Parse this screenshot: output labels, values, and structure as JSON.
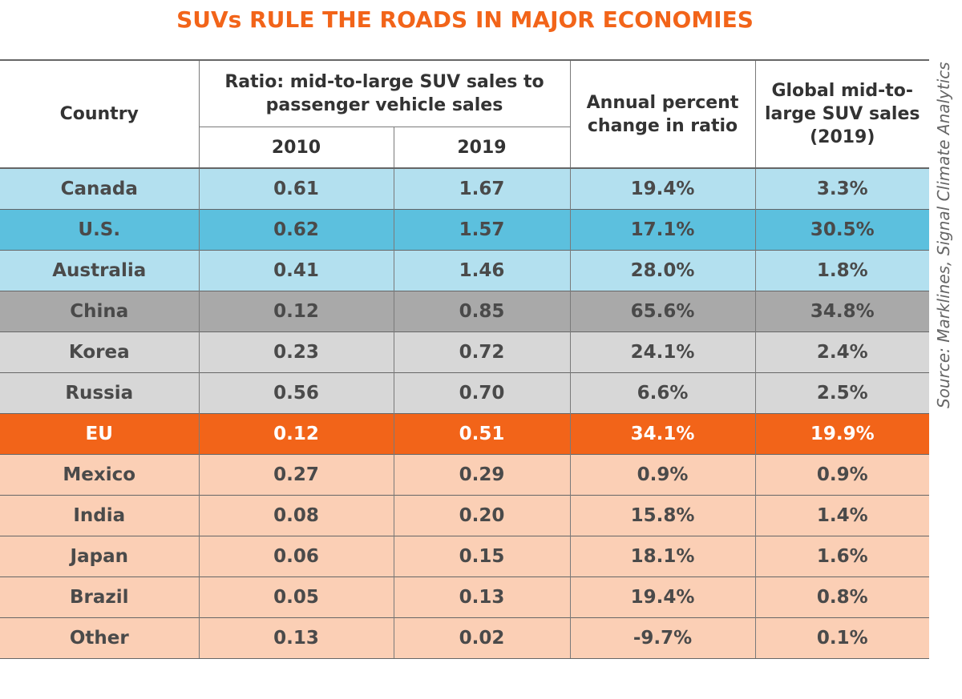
{
  "title": "SUVs RULE THE ROADS IN MAJOR ECONOMIES",
  "source": "Source: Marklines, Signal Climate Analytics",
  "headers": {
    "country": "Country",
    "ratio_group": "Ratio: mid-to-large SUV sales to passenger vehicle sales",
    "year_2010": "2010",
    "year_2019": "2019",
    "annual_change": "Annual percent change in ratio",
    "global_sales": "Global mid-to-large SUV sales (2019)"
  },
  "colors": {
    "title": "#f26419",
    "light_blue": "#b3e0ef",
    "mid_blue": "#5cc0de",
    "dark_gray": "#a9a9a9",
    "light_gray": "#d7d7d7",
    "orange": "#f26419",
    "peach": "#fbcfb5"
  },
  "chart_data": {
    "type": "table",
    "title": "SUVs RULE THE ROADS IN MAJOR ECONOMIES",
    "columns": [
      "Country",
      "2010",
      "2019",
      "Annual percent change in ratio",
      "Global mid-to-large SUV sales (2019)"
    ],
    "rows": [
      {
        "country": "Canada",
        "r2010": "0.61",
        "r2019": "1.67",
        "change": "19.4%",
        "share": "3.3%",
        "bg": "#b3e0ef",
        "fg": "#4a4a4a"
      },
      {
        "country": "U.S.",
        "r2010": "0.62",
        "r2019": "1.57",
        "change": "17.1%",
        "share": "30.5%",
        "bg": "#5cc0de",
        "fg": "#4a4a4a"
      },
      {
        "country": "Australia",
        "r2010": "0.41",
        "r2019": "1.46",
        "change": "28.0%",
        "share": "1.8%",
        "bg": "#b3e0ef",
        "fg": "#4a4a4a"
      },
      {
        "country": "China",
        "r2010": "0.12",
        "r2019": "0.85",
        "change": "65.6%",
        "share": "34.8%",
        "bg": "#a9a9a9",
        "fg": "#4a4a4a"
      },
      {
        "country": "Korea",
        "r2010": "0.23",
        "r2019": "0.72",
        "change": "24.1%",
        "share": "2.4%",
        "bg": "#d7d7d7",
        "fg": "#4a4a4a"
      },
      {
        "country": "Russia",
        "r2010": "0.56",
        "r2019": "0.70",
        "change": "6.6%",
        "share": "2.5%",
        "bg": "#d7d7d7",
        "fg": "#4a4a4a"
      },
      {
        "country": "EU",
        "r2010": "0.12",
        "r2019": "0.51",
        "change": "34.1%",
        "share": "19.9%",
        "bg": "#f26419",
        "fg": "#ffffff"
      },
      {
        "country": "Mexico",
        "r2010": "0.27",
        "r2019": "0.29",
        "change": "0.9%",
        "share": "0.9%",
        "bg": "#fbcfb5",
        "fg": "#4a4a4a"
      },
      {
        "country": "India",
        "r2010": "0.08",
        "r2019": "0.20",
        "change": "15.8%",
        "share": "1.4%",
        "bg": "#fbcfb5",
        "fg": "#4a4a4a"
      },
      {
        "country": "Japan",
        "r2010": "0.06",
        "r2019": "0.15",
        "change": "18.1%",
        "share": "1.6%",
        "bg": "#fbcfb5",
        "fg": "#4a4a4a"
      },
      {
        "country": "Brazil",
        "r2010": "0.05",
        "r2019": "0.13",
        "change": "19.4%",
        "share": "0.8%",
        "bg": "#fbcfb5",
        "fg": "#4a4a4a"
      },
      {
        "country": "Other",
        "r2010": "0.13",
        "r2019": "0.02",
        "change": "-9.7%",
        "share": "0.1%",
        "bg": "#fbcfb5",
        "fg": "#4a4a4a"
      }
    ]
  }
}
